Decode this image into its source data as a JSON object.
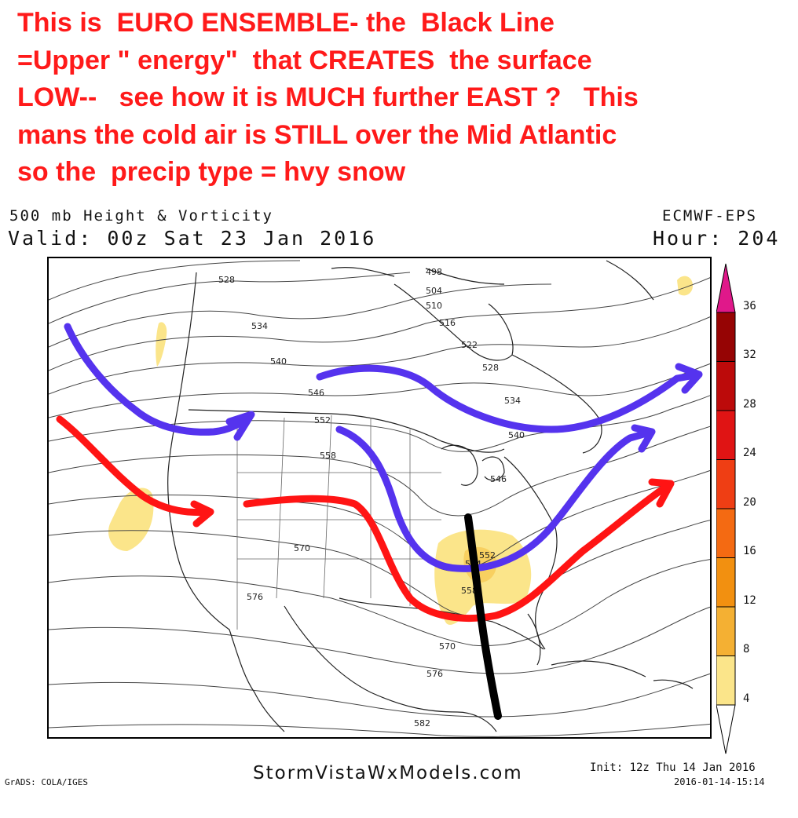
{
  "annotation": {
    "lines": [
      "This is  EURO ENSEMBLE- the  Black Line",
      "=Upper \" energy\"  that CREATES  the surface",
      "LOW--   see how it is MUCH further EAST ?   This",
      "mans the cold air is STILL over the Mid Atlantic",
      "so the  precip type = hvy snow"
    ],
    "color": "#ff1a1a"
  },
  "header": {
    "product": "500 mb Height & Vorticity",
    "valid": "Valid: 00z Sat 23 Jan 2016",
    "model": "ECMWF-EPS",
    "hour": "Hour: 204"
  },
  "contour_labels": [
    "498",
    "504",
    "510",
    "516",
    "522",
    "528",
    "528",
    "534",
    "534",
    "540",
    "540",
    "546",
    "546",
    "552",
    "552",
    "558",
    "558",
    "564",
    "570",
    "570",
    "576",
    "576",
    "582"
  ],
  "colorbar": {
    "ticks": [
      "4",
      "8",
      "12",
      "16",
      "20",
      "24",
      "28",
      "32",
      "36"
    ],
    "colors": [
      "#fbe58a",
      "#f8d060",
      "#f4b033",
      "#f29010",
      "#f46a12",
      "#ef3e14",
      "#e01414",
      "#bc0a0a",
      "#960404",
      "#e0188a"
    ]
  },
  "drawn_lines": {
    "blue": "#5533ee",
    "red": "#ff1414",
    "black": "#000000"
  },
  "footer": {
    "grads": "GrADS: COLA/IGES",
    "site": "StormVistaWxModels.com",
    "init": "Init: 12z Thu 14 Jan 2016",
    "stamp": "2016-01-14-15:14"
  }
}
